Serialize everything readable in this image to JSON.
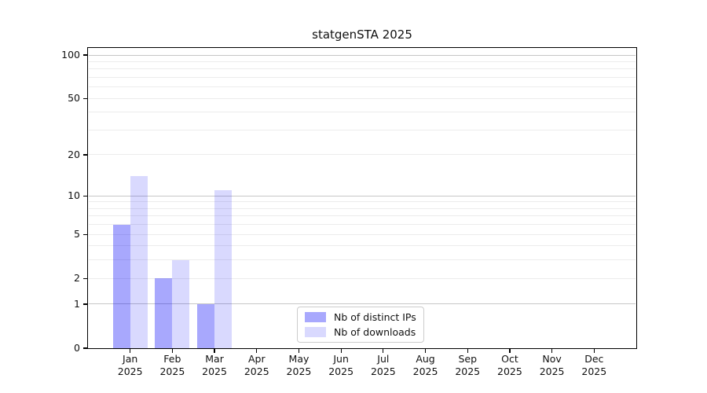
{
  "chart_data": {
    "type": "bar",
    "title": "statgenSTA 2025",
    "categories": [
      "Jan",
      "Feb",
      "Mar",
      "Apr",
      "May",
      "Jun",
      "Jul",
      "Aug",
      "Sep",
      "Oct",
      "Nov",
      "Dec"
    ],
    "x_tick_line2": "2025",
    "series": [
      {
        "name": "Nb of distinct IPs",
        "color": "rgba(0,0,250,0.34)",
        "values": [
          6,
          2,
          1,
          0,
          0,
          0,
          0,
          0,
          0,
          0,
          0,
          0
        ]
      },
      {
        "name": "Nb of downloads",
        "color": "rgba(0,0,250,0.15)",
        "values": [
          14,
          3,
          11,
          0,
          0,
          0,
          0,
          0,
          0,
          0,
          0,
          0
        ]
      }
    ],
    "scale": "log1p",
    "ylim": [
      0,
      112
    ],
    "y_ticks": [
      0,
      1,
      2,
      5,
      10,
      20,
      50,
      100
    ],
    "y_major_gridlines": [
      1,
      10,
      100
    ],
    "y_minor_gridlines": [
      2,
      3,
      4,
      5,
      6,
      7,
      8,
      9,
      20,
      30,
      40,
      50,
      60,
      70,
      80,
      90
    ],
    "grid": "on",
    "legend_position": "lower center"
  },
  "colors": {
    "major_grid": "#c6c6c6",
    "minor_grid": "#ececec",
    "axis": "#000000",
    "background": "#ffffff"
  }
}
